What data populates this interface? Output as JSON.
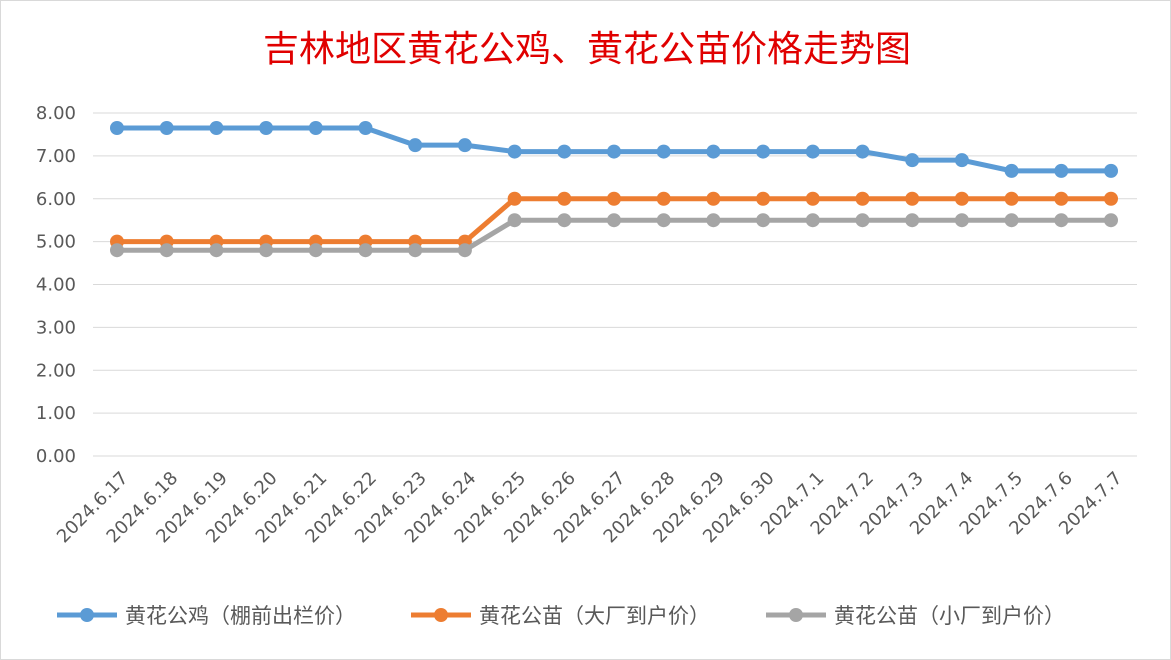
{
  "chart_data": {
    "type": "line",
    "title": "吉林地区黄花公鸡、黄花公苗价格走势图",
    "x": [
      "2024.6.17",
      "2024.6.18",
      "2024.6.19",
      "2024.6.20",
      "2024.6.21",
      "2024.6.22",
      "2024.6.23",
      "2024.6.24",
      "2024.6.25",
      "2024.6.26",
      "2024.6.27",
      "2024.6.28",
      "2024.6.29",
      "2024.6.30",
      "2024.7.1",
      "2024.7.2",
      "2024.7.3",
      "2024.7.4",
      "2024.7.5",
      "2024.7.6",
      "2024.7.7"
    ],
    "yticks": [
      "0.00",
      "1.00",
      "2.00",
      "3.00",
      "4.00",
      "5.00",
      "6.00",
      "7.00",
      "8.00"
    ],
    "ylim": [
      0,
      8
    ],
    "grid": true,
    "legend_position": "bottom",
    "series": [
      {
        "name": "黄花公鸡（棚前出栏价）",
        "color": "#5b9bd5",
        "values": [
          7.65,
          7.65,
          7.65,
          7.65,
          7.65,
          7.65,
          7.25,
          7.25,
          7.1,
          7.1,
          7.1,
          7.1,
          7.1,
          7.1,
          7.1,
          7.1,
          6.9,
          6.9,
          6.65,
          6.65,
          6.65
        ]
      },
      {
        "name": "黄花公苗（大厂到户价）",
        "color": "#ed7d31",
        "values": [
          5.0,
          5.0,
          5.0,
          5.0,
          5.0,
          5.0,
          5.0,
          5.0,
          6.0,
          6.0,
          6.0,
          6.0,
          6.0,
          6.0,
          6.0,
          6.0,
          6.0,
          6.0,
          6.0,
          6.0,
          6.0
        ]
      },
      {
        "name": "黄花公苗（小厂到户价）",
        "color": "#a5a5a5",
        "values": [
          4.8,
          4.8,
          4.8,
          4.8,
          4.8,
          4.8,
          4.8,
          4.8,
          5.5,
          5.5,
          5.5,
          5.5,
          5.5,
          5.5,
          5.5,
          5.5,
          5.5,
          5.5,
          5.5,
          5.5,
          5.5
        ]
      }
    ]
  }
}
